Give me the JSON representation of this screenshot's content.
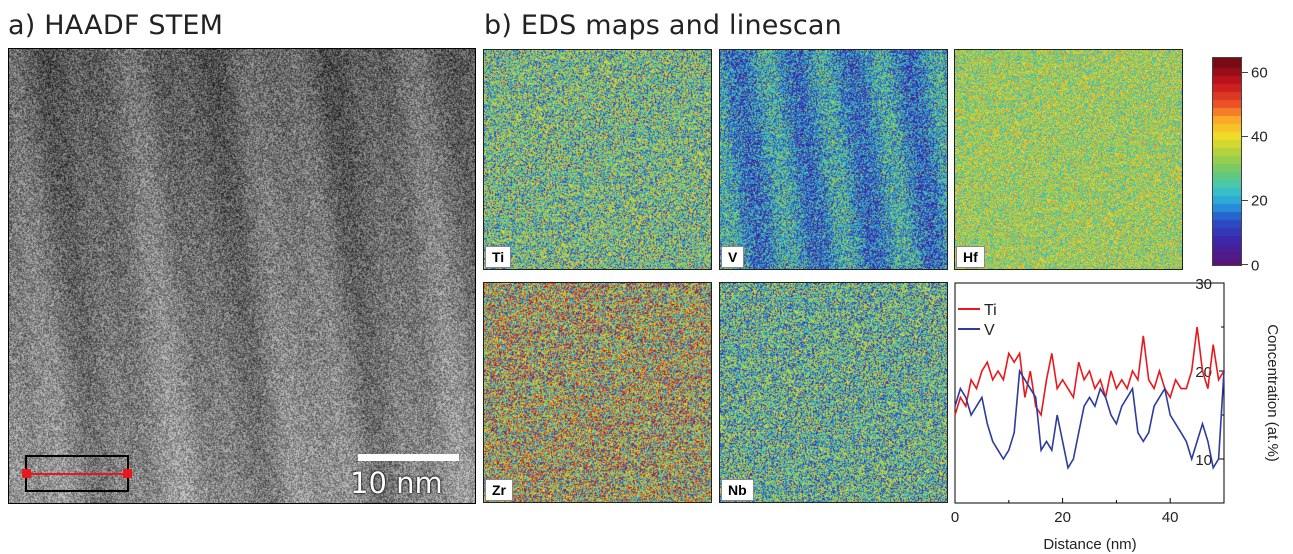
{
  "panel_a": {
    "title": "a) HAADF STEM",
    "scale_bar_label": "10 nm"
  },
  "panel_b": {
    "title": "b) EDS maps and linescan"
  },
  "maps": [
    {
      "label": "Ti"
    },
    {
      "label": "V"
    },
    {
      "label": "Hf"
    },
    {
      "label": "Zr"
    },
    {
      "label": "Nb"
    }
  ],
  "colorbar": {
    "ticks": [
      "0",
      "20",
      "40",
      "60"
    ],
    "min": 0,
    "max": 65
  },
  "colors": {
    "ti_line": "#e8191c",
    "v_line": "#2b3c9e",
    "scan_marker": "#e8191c"
  },
  "chart_data": {
    "type": "line",
    "xlabel": "Distance (nm)",
    "ylabel": "Concentration (at.%)",
    "xlim": [
      0,
      50
    ],
    "ylim": [
      5,
      30
    ],
    "xticks": [
      "0",
      "20",
      "40"
    ],
    "yticks": [
      "10",
      "20",
      "30"
    ],
    "legend_position": "top-left",
    "x": [
      0,
      1,
      2,
      3,
      4,
      5,
      6,
      7,
      8,
      9,
      10,
      11,
      12,
      13,
      14,
      15,
      16,
      17,
      18,
      19,
      20,
      21,
      22,
      23,
      24,
      25,
      26,
      27,
      28,
      29,
      30,
      31,
      32,
      33,
      34,
      35,
      36,
      37,
      38,
      39,
      40,
      41,
      42,
      43,
      44,
      45,
      46,
      47,
      48,
      49,
      50
    ],
    "series": [
      {
        "name": "Ti",
        "values": [
          15,
          17,
          16,
          19,
          18,
          20,
          21,
          19,
          20,
          19,
          22,
          21,
          22,
          17,
          20,
          16,
          15,
          19,
          22,
          18,
          19,
          18,
          17,
          21,
          19,
          20,
          18,
          19,
          17,
          20,
          18,
          19,
          18,
          20,
          19,
          24,
          19,
          18,
          20,
          18,
          17,
          19,
          18,
          18,
          20,
          25,
          20,
          18,
          23,
          19,
          20
        ]
      },
      {
        "name": "V",
        "values": [
          16,
          18,
          17,
          15,
          16,
          17,
          14,
          12,
          11,
          10,
          11,
          13,
          20,
          19,
          18,
          17,
          11,
          12,
          11,
          15,
          12,
          9,
          10,
          13,
          16,
          17,
          16,
          18,
          17,
          15,
          14,
          16,
          17,
          18,
          13,
          12,
          13,
          16,
          17,
          18,
          15,
          14,
          13,
          12,
          10,
          12,
          14,
          12,
          9,
          10,
          20
        ]
      }
    ]
  }
}
